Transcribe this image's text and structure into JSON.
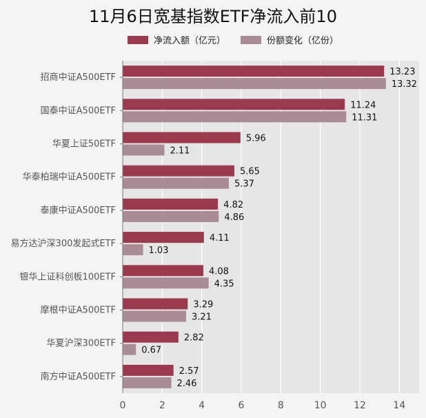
{
  "chart_data": {
    "type": "bar",
    "orientation": "horizontal",
    "title": "11月6日宽基指数ETF净流入前10",
    "categories": [
      "招商中证A500ETF",
      "国泰中证A500ETF",
      "华夏上证50ETF",
      "华泰柏瑞中证A500ETF",
      "泰康中证A500ETF",
      "易方达沪深300发起式ETF",
      "银华上证科创板100ETF",
      "摩根中证A500ETF",
      "华夏沪深300ETF",
      "南方中证A500ETF"
    ],
    "series": [
      {
        "name": "净流入额（亿元）",
        "color": "#9b3a4f",
        "values": [
          13.23,
          11.24,
          5.96,
          5.65,
          4.82,
          4.11,
          4.08,
          3.29,
          2.82,
          2.57
        ],
        "labels": [
          "13.23",
          "11.24",
          "5.96",
          "5.65",
          "4.82",
          "4.11",
          "4.08",
          "3.29",
          "2.82",
          "2.57"
        ]
      },
      {
        "name": "份额变化（亿份）",
        "color": "#a98c96",
        "values": [
          13.32,
          11.31,
          2.11,
          5.37,
          4.86,
          1.03,
          4.35,
          3.21,
          0.67,
          2.46
        ],
        "labels": [
          "13.32",
          "11.31",
          "2.11",
          "5.37",
          "4.86",
          "1.03",
          "4.35",
          "3.21",
          "0.67",
          "2.46"
        ]
      }
    ],
    "xlim": [
      0,
      15
    ],
    "xticks": [
      "0",
      "2",
      "4",
      "6",
      "8",
      "10",
      "12",
      "14"
    ],
    "grid": true,
    "legend_position": "top"
  }
}
